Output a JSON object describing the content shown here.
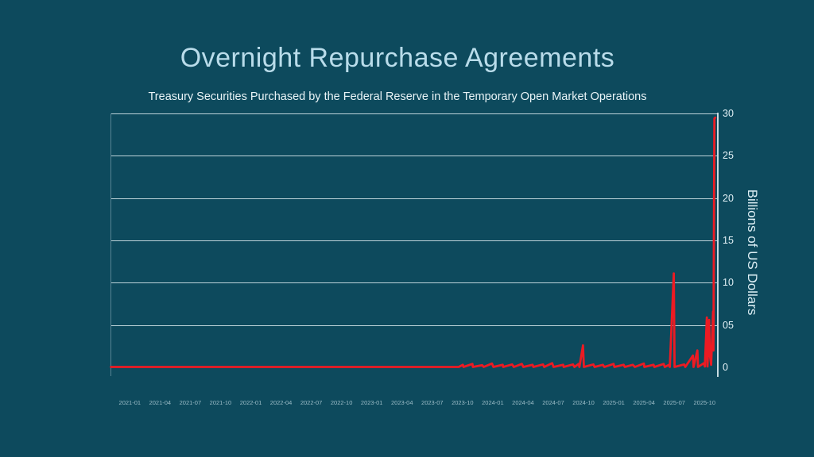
{
  "colors": {
    "background": "#0d4a5d",
    "title": "#b9dcea",
    "subtitle": "#e9f4f7",
    "line": "#ec1b23",
    "grid": "#bed4da",
    "axis": "#c7dbe1",
    "x_tick_labels": "#9cbcc7",
    "y_tick_labels": "#e4f2f7"
  },
  "header": {
    "title": "Overnight Repurchase Agreements",
    "subtitle": "Treasury Securities Purchased by the Federal Reserve in the Temporary Open Market Operations"
  },
  "chart_data": {
    "type": "line",
    "title": "Overnight Repurchase Agreements",
    "subtitle": "Treasury Securities Purchased by the Federal Reserve in the Temporary Open Market Operations",
    "ylabel": "Billions of US Dollars",
    "ylim": [
      0,
      30
    ],
    "grid": "horizontal",
    "legend": "none",
    "line_color": "#ec1b23",
    "yticks": [
      {
        "value": 0,
        "label": "0"
      },
      {
        "value": 5,
        "label": "05"
      },
      {
        "value": 10,
        "label": "10"
      },
      {
        "value": 15,
        "label": "15"
      },
      {
        "value": 20,
        "label": "20"
      },
      {
        "value": 25,
        "label": "25"
      },
      {
        "value": 30,
        "label": "30"
      }
    ],
    "xticks": [
      "2021-01",
      "2021-04",
      "2021-07",
      "2021-10",
      "2022-01",
      "2022-04",
      "2022-07",
      "2022-10",
      "2023-01",
      "2023-04",
      "2023-07",
      "2023-10",
      "2024-01",
      "2024-04",
      "2024-07",
      "2024-10",
      "2025-01",
      "2025-04",
      "2025-07",
      "2025-10"
    ],
    "series": [
      {
        "points": [
          [
            "2020-11-05",
            0.05
          ],
          [
            "2023-09-20",
            0.05
          ],
          [
            "2023-10-02",
            0.3
          ],
          [
            "2023-10-04",
            0.05
          ],
          [
            "2023-10-31",
            0.4
          ],
          [
            "2023-11-02",
            0.05
          ],
          [
            "2023-11-30",
            0.25
          ],
          [
            "2023-12-04",
            0.05
          ],
          [
            "2023-12-29",
            0.45
          ],
          [
            "2024-01-03",
            0.05
          ],
          [
            "2024-01-31",
            0.3
          ],
          [
            "2024-02-02",
            0.05
          ],
          [
            "2024-02-29",
            0.35
          ],
          [
            "2024-03-04",
            0.05
          ],
          [
            "2024-03-28",
            0.4
          ],
          [
            "2024-04-02",
            0.05
          ],
          [
            "2024-04-30",
            0.3
          ],
          [
            "2024-05-02",
            0.05
          ],
          [
            "2024-05-31",
            0.35
          ],
          [
            "2024-06-04",
            0.05
          ],
          [
            "2024-06-28",
            0.5
          ],
          [
            "2024-07-02",
            0.05
          ],
          [
            "2024-07-31",
            0.3
          ],
          [
            "2024-08-02",
            0.05
          ],
          [
            "2024-08-30",
            0.35
          ],
          [
            "2024-09-04",
            0.05
          ],
          [
            "2024-09-17",
            0.4
          ],
          [
            "2024-09-19",
            0.05
          ],
          [
            "2024-09-30",
            2.6
          ],
          [
            "2024-10-02",
            0.05
          ],
          [
            "2024-10-31",
            0.35
          ],
          [
            "2024-11-04",
            0.05
          ],
          [
            "2024-11-29",
            0.3
          ],
          [
            "2024-12-03",
            0.05
          ],
          [
            "2024-12-31",
            0.4
          ],
          [
            "2025-01-03",
            0.05
          ],
          [
            "2025-01-31",
            0.3
          ],
          [
            "2025-02-04",
            0.05
          ],
          [
            "2025-02-28",
            0.3
          ],
          [
            "2025-03-04",
            0.05
          ],
          [
            "2025-03-31",
            0.45
          ],
          [
            "2025-04-02",
            0.05
          ],
          [
            "2025-04-30",
            0.3
          ],
          [
            "2025-05-02",
            0.05
          ],
          [
            "2025-05-30",
            0.4
          ],
          [
            "2025-06-03",
            0.05
          ],
          [
            "2025-06-16",
            0.3
          ],
          [
            "2025-06-18",
            0.05
          ],
          [
            "2025-06-30",
            11.1
          ],
          [
            "2025-07-02",
            0.05
          ],
          [
            "2025-07-31",
            0.35
          ],
          [
            "2025-08-04",
            0.05
          ],
          [
            "2025-08-27",
            1.4
          ],
          [
            "2025-08-29",
            0.05
          ],
          [
            "2025-09-10",
            2.0
          ],
          [
            "2025-09-12",
            0.05
          ],
          [
            "2025-09-30",
            0.5
          ],
          [
            "2025-10-02",
            0.1
          ],
          [
            "2025-10-08",
            5.9
          ],
          [
            "2025-10-10",
            0.1
          ],
          [
            "2025-10-15",
            5.6
          ],
          [
            "2025-10-17",
            1.5
          ],
          [
            "2025-10-21",
            0.3
          ],
          [
            "2025-10-24",
            3.3
          ],
          [
            "2025-10-27",
            6.6
          ],
          [
            "2025-10-28",
            2.0
          ],
          [
            "2025-10-31",
            29.4
          ],
          [
            "2025-11-03",
            29.5
          ]
        ]
      }
    ]
  }
}
